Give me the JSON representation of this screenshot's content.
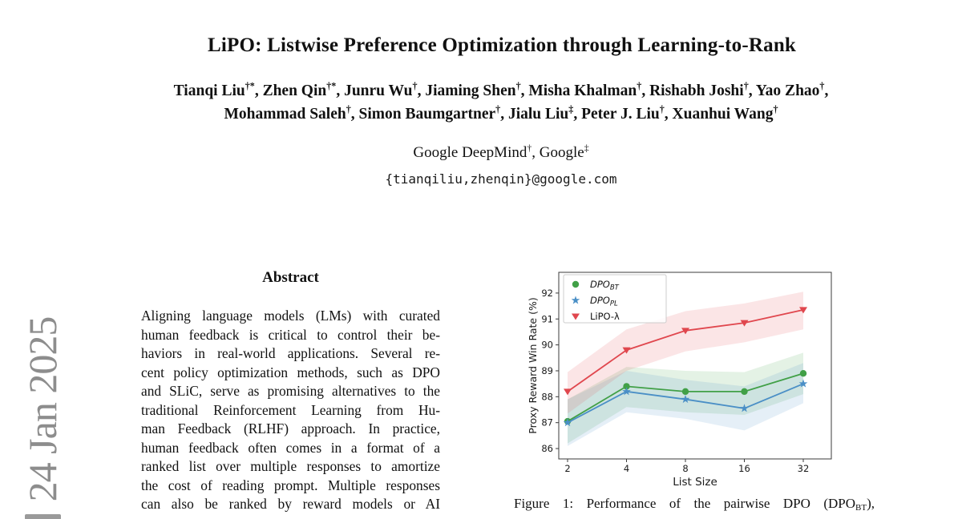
{
  "header": {
    "title": "LiPO: Listwise Preference Optimization through Learning-to-Rank",
    "authors_line1": [
      {
        "t": "Tianqi Liu",
        "sup": "†*"
      },
      {
        "t": ", Zhen Qin",
        "sup": "†*"
      },
      {
        "t": ", Junru Wu",
        "sup": "†"
      },
      {
        "t": ", Jiaming Shen",
        "sup": "†"
      },
      {
        "t": ", Misha Khalman",
        "sup": "†"
      },
      {
        "t": ", Rishabh Joshi",
        "sup": "†"
      },
      {
        "t": ", Yao Zhao",
        "sup": "†"
      },
      {
        "t": ",",
        "sup": ""
      }
    ],
    "authors_line2": [
      {
        "t": "Mohammad Saleh",
        "sup": "†"
      },
      {
        "t": ", Simon Baumgartner",
        "sup": "†"
      },
      {
        "t": ", Jialu Liu",
        "sup": "‡"
      },
      {
        "t": ", Peter J. Liu",
        "sup": "†"
      },
      {
        "t": ", Xuanhui Wang",
        "sup": "†"
      }
    ],
    "affiliation": [
      {
        "t": "Google DeepMind",
        "sup": "†"
      },
      {
        "t": ", Google",
        "sup": "‡"
      }
    ],
    "email": "{tianqiliu,zhenqin}@google.com"
  },
  "watermark": {
    "date": "24 Jan 2025"
  },
  "abstract": {
    "heading": "Abstract",
    "lines": [
      "Aligning language models (LMs) with curated",
      "human feedback is critical to control their be-",
      "haviors in real-world applications. Several re-",
      "cent policy optimization methods, such as DPO",
      "and SLiC, serve as promising alternatives to the",
      "traditional Reinforcement Learning from Hu-",
      "man Feedback (RLHF) approach. In practice,",
      "human feedback often comes in a format of a",
      "ranked list over multiple responses to amortize",
      "the cost of reading prompt. Multiple responses",
      "can also be ranked by reward models or AI"
    ]
  },
  "figure": {
    "caption_prefix": "Figure 1: Performance of the pairwise DPO (DPO",
    "caption_sub": "BT",
    "caption_suffix": "),"
  },
  "chart_data": {
    "type": "line",
    "title": "",
    "xlabel": "List Size",
    "ylabel": "Proxy Reward Win Rate (%)",
    "x_scale": "log2",
    "x_categories": [
      "2",
      "4",
      "8",
      "16",
      "32"
    ],
    "yticks": [
      86,
      87,
      88,
      89,
      90,
      91,
      92
    ],
    "ylim": [
      85.6,
      92.8
    ],
    "grid": false,
    "legend_position": "upper left",
    "series": [
      {
        "name": "DPO_BT",
        "label_main": "DPO",
        "label_sub": "BT",
        "italic": true,
        "marker": "circle",
        "color": "#41a047",
        "values": [
          87.05,
          88.4,
          88.2,
          88.2,
          88.9
        ],
        "band_low": [
          86.2,
          87.6,
          87.4,
          87.3,
          88.1
        ],
        "band_high": [
          87.9,
          89.15,
          89.0,
          88.95,
          89.7
        ]
      },
      {
        "name": "DPO_PL",
        "label_main": "DPO",
        "label_sub": "PL",
        "italic": true,
        "marker": "star",
        "color": "#4a8fc6",
        "values": [
          87.0,
          88.2,
          87.9,
          87.55,
          88.5
        ],
        "band_low": [
          86.1,
          87.4,
          87.15,
          86.7,
          87.75
        ],
        "band_high": [
          87.9,
          89.0,
          88.65,
          88.4,
          89.3
        ]
      },
      {
        "name": "LiPO-λ",
        "label_main": "LiPO-λ",
        "label_sub": "",
        "italic": false,
        "marker": "triangle-down",
        "color": "#e0474e",
        "values": [
          88.2,
          89.8,
          90.55,
          90.85,
          91.35
        ],
        "band_low": [
          87.35,
          89.0,
          89.75,
          90.1,
          90.6
        ],
        "band_high": [
          88.95,
          90.6,
          91.3,
          91.6,
          92.05
        ]
      }
    ]
  }
}
